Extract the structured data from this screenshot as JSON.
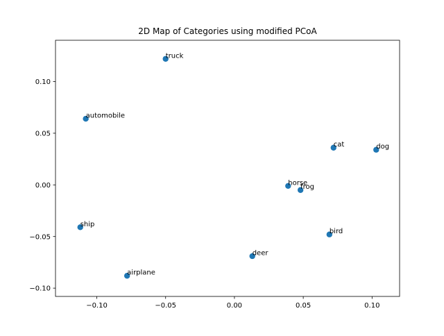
{
  "chart_data": {
    "type": "scatter",
    "title": "2D Map of Categories using modified PCoA",
    "xlabel": "",
    "ylabel": "",
    "xlim": [
      -0.13,
      0.12
    ],
    "ylim": [
      -0.108,
      0.14
    ],
    "grid": false,
    "point_color": "#1f77b4",
    "xticks": [
      {
        "value": -0.1,
        "label": "−0.10"
      },
      {
        "value": -0.05,
        "label": "−0.05"
      },
      {
        "value": 0.0,
        "label": "0.00"
      },
      {
        "value": 0.05,
        "label": "0.05"
      },
      {
        "value": 0.1,
        "label": "0.10"
      }
    ],
    "yticks": [
      {
        "value": 0.1,
        "label": "0.10"
      },
      {
        "value": 0.05,
        "label": "0.05"
      },
      {
        "value": 0.0,
        "label": "0.00"
      },
      {
        "value": -0.05,
        "label": "−0.05"
      },
      {
        "value": -0.1,
        "label": "−0.10"
      }
    ],
    "points": [
      {
        "label": "truck",
        "x": -0.05,
        "y": 0.122
      },
      {
        "label": "automobile",
        "x": -0.108,
        "y": 0.064
      },
      {
        "label": "cat",
        "x": 0.072,
        "y": 0.036
      },
      {
        "label": "dog",
        "x": 0.103,
        "y": 0.034
      },
      {
        "label": "horse",
        "x": 0.039,
        "y": -0.001
      },
      {
        "label": "frog",
        "x": 0.048,
        "y": -0.005
      },
      {
        "label": "ship",
        "x": -0.112,
        "y": -0.041
      },
      {
        "label": "bird",
        "x": 0.069,
        "y": -0.048
      },
      {
        "label": "deer",
        "x": 0.013,
        "y": -0.069
      },
      {
        "label": "airplane",
        "x": -0.078,
        "y": -0.088
      }
    ]
  }
}
